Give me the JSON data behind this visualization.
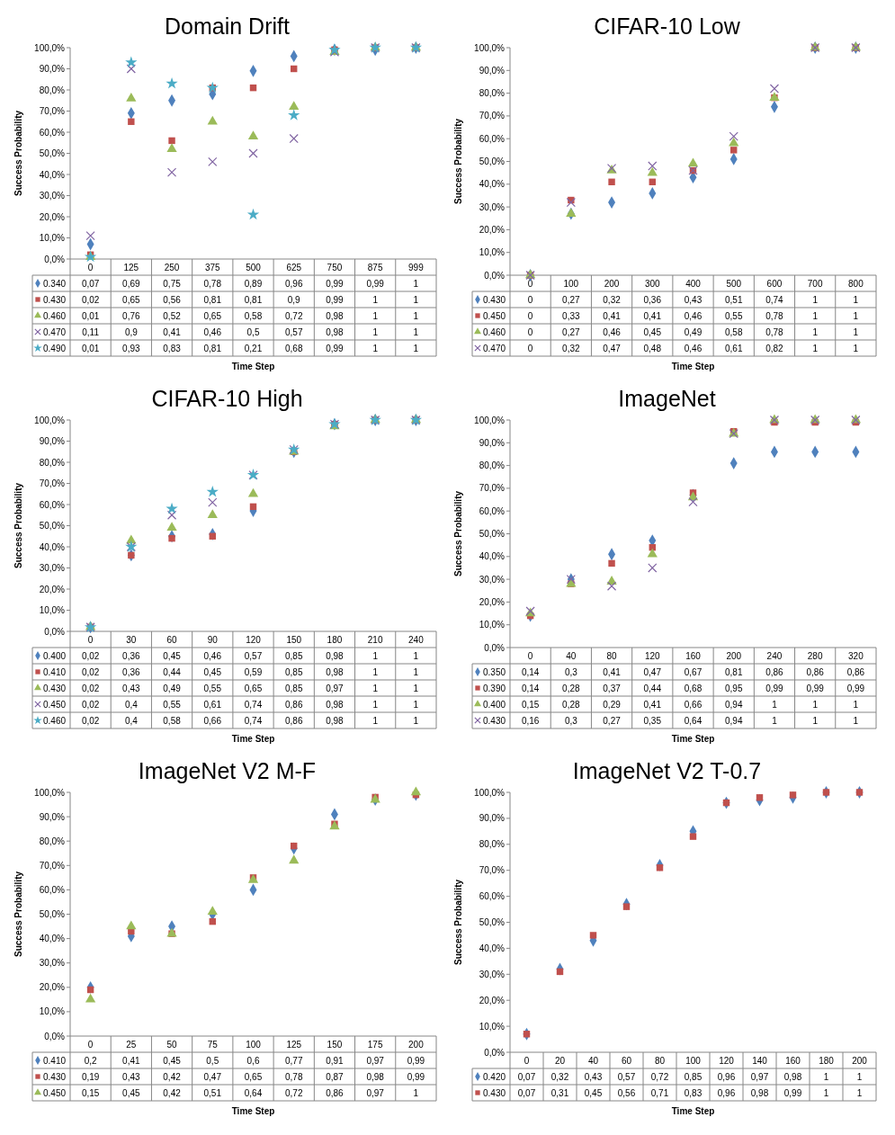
{
  "chart_data": [
    {
      "type": "scatter",
      "title": "Domain Drift",
      "xlabel": "Time Step",
      "ylabel": "Success Probability",
      "categories": [
        "0",
        "125",
        "250",
        "375",
        "500",
        "625",
        "750",
        "875",
        "999"
      ],
      "ylim": [
        0,
        1
      ],
      "yticks": [
        {
          "value": 0,
          "label": "0,0%"
        },
        {
          "value": 0.1,
          "label": "10,0%"
        },
        {
          "value": 0.2,
          "label": "20,0%"
        },
        {
          "value": 0.3,
          "label": "30,0%"
        },
        {
          "value": 0.4,
          "label": "40,0%"
        },
        {
          "value": 0.5,
          "label": "50,0%"
        },
        {
          "value": 0.6,
          "label": "60,0%"
        },
        {
          "value": 0.7,
          "label": "70,0%"
        },
        {
          "value": 0.8,
          "label": "80,0%"
        },
        {
          "value": 0.9,
          "label": "90,0%"
        },
        {
          "value": 1,
          "label": "100,0%"
        }
      ],
      "legend": "bottom",
      "series": [
        {
          "name": "0.340",
          "color": "#4f81bd",
          "marker": "diamond",
          "values": [
            0.07,
            0.69,
            0.75,
            0.78,
            0.89,
            0.96,
            0.99,
            0.99,
            1
          ],
          "value_labels": [
            "0,07",
            "0,69",
            "0,75",
            "0,78",
            "0,89",
            "0,96",
            "0,99",
            "0,99",
            "1"
          ]
        },
        {
          "name": "0.430",
          "color": "#c0504d",
          "marker": "square",
          "values": [
            0.02,
            0.65,
            0.56,
            0.81,
            0.81,
            0.9,
            0.99,
            1,
            1
          ],
          "value_labels": [
            "0,02",
            "0,65",
            "0,56",
            "0,81",
            "0,81",
            "0,9",
            "0,99",
            "1",
            "1"
          ]
        },
        {
          "name": "0.460",
          "color": "#9bbb59",
          "marker": "triangle",
          "values": [
            0.01,
            0.76,
            0.52,
            0.65,
            0.58,
            0.72,
            0.98,
            1,
            1
          ],
          "value_labels": [
            "0,01",
            "0,76",
            "0,52",
            "0,65",
            "0,58",
            "0,72",
            "0,98",
            "1",
            "1"
          ]
        },
        {
          "name": "0.470",
          "color": "#8064a2",
          "marker": "cross",
          "values": [
            0.11,
            0.9,
            0.41,
            0.46,
            0.5,
            0.57,
            0.98,
            1,
            1
          ],
          "value_labels": [
            "0,11",
            "0,9",
            "0,41",
            "0,46",
            "0,5",
            "0,57",
            "0,98",
            "1",
            "1"
          ]
        },
        {
          "name": "0.490",
          "color": "#4bacc6",
          "marker": "star",
          "values": [
            0.01,
            0.93,
            0.83,
            0.81,
            0.21,
            0.68,
            0.99,
            1,
            1
          ],
          "value_labels": [
            "0,01",
            "0,93",
            "0,83",
            "0,81",
            "0,21",
            "0,68",
            "0,99",
            "1",
            "1"
          ]
        }
      ]
    },
    {
      "type": "scatter",
      "title": "CIFAR-10 Low",
      "xlabel": "Time Step",
      "ylabel": "Success Probability",
      "categories": [
        "0",
        "100",
        "200",
        "300",
        "400",
        "500",
        "600",
        "700",
        "800"
      ],
      "ylim": [
        0,
        1
      ],
      "yticks": [
        {
          "value": 0,
          "label": "0,0%"
        },
        {
          "value": 0.1,
          "label": "10,0%"
        },
        {
          "value": 0.2,
          "label": "20,0%"
        },
        {
          "value": 0.3,
          "label": "30,0%"
        },
        {
          "value": 0.4,
          "label": "40,0%"
        },
        {
          "value": 0.5,
          "label": "50,0%"
        },
        {
          "value": 0.6,
          "label": "60,0%"
        },
        {
          "value": 0.7,
          "label": "70,0%"
        },
        {
          "value": 0.8,
          "label": "80,0%"
        },
        {
          "value": 0.9,
          "label": "90,0%"
        },
        {
          "value": 1,
          "label": "100,0%"
        }
      ],
      "legend": "bottom",
      "series": [
        {
          "name": "0.430",
          "color": "#4f81bd",
          "marker": "diamond",
          "values": [
            0,
            0.27,
            0.32,
            0.36,
            0.43,
            0.51,
            0.74,
            1,
            1
          ],
          "value_labels": [
            "0",
            "0,27",
            "0,32",
            "0,36",
            "0,43",
            "0,51",
            "0,74",
            "1",
            "1"
          ]
        },
        {
          "name": "0.450",
          "color": "#c0504d",
          "marker": "square",
          "values": [
            0,
            0.33,
            0.41,
            0.41,
            0.46,
            0.55,
            0.78,
            1,
            1
          ],
          "value_labels": [
            "0",
            "0,33",
            "0,41",
            "0,41",
            "0,46",
            "0,55",
            "0,78",
            "1",
            "1"
          ]
        },
        {
          "name": "0.460",
          "color": "#9bbb59",
          "marker": "triangle",
          "values": [
            0,
            0.27,
            0.46,
            0.45,
            0.49,
            0.58,
            0.78,
            1,
            1
          ],
          "value_labels": [
            "0",
            "0,27",
            "0,46",
            "0,45",
            "0,49",
            "0,58",
            "0,78",
            "1",
            "1"
          ]
        },
        {
          "name": "0.470",
          "color": "#8064a2",
          "marker": "cross",
          "values": [
            0,
            0.32,
            0.47,
            0.48,
            0.46,
            0.61,
            0.82,
            1,
            1
          ],
          "value_labels": [
            "0",
            "0,32",
            "0,47",
            "0,48",
            "0,46",
            "0,61",
            "0,82",
            "1",
            "1"
          ]
        }
      ]
    },
    {
      "type": "scatter",
      "title": "CIFAR-10 High",
      "xlabel": "Time Step",
      "ylabel": "Success Probability",
      "categories": [
        "0",
        "30",
        "60",
        "90",
        "120",
        "150",
        "180",
        "210",
        "240"
      ],
      "ylim": [
        0,
        1
      ],
      "yticks": [
        {
          "value": 0,
          "label": "0,0%"
        },
        {
          "value": 0.1,
          "label": "10,0%"
        },
        {
          "value": 0.2,
          "label": "20,0%"
        },
        {
          "value": 0.3,
          "label": "30,0%"
        },
        {
          "value": 0.4,
          "label": "40,0%"
        },
        {
          "value": 0.5,
          "label": "50,0%"
        },
        {
          "value": 0.6,
          "label": "60,0%"
        },
        {
          "value": 0.7,
          "label": "70,0%"
        },
        {
          "value": 0.8,
          "label": "80,0%"
        },
        {
          "value": 0.9,
          "label": "90,0%"
        },
        {
          "value": 1,
          "label": "100,0%"
        }
      ],
      "legend": "bottom",
      "series": [
        {
          "name": "0.400",
          "color": "#4f81bd",
          "marker": "diamond",
          "values": [
            0.02,
            0.36,
            0.45,
            0.46,
            0.57,
            0.85,
            0.98,
            1,
            1
          ],
          "value_labels": [
            "0,02",
            "0,36",
            "0,45",
            "0,46",
            "0,57",
            "0,85",
            "0,98",
            "1",
            "1"
          ]
        },
        {
          "name": "0.410",
          "color": "#c0504d",
          "marker": "square",
          "values": [
            0.02,
            0.36,
            0.44,
            0.45,
            0.59,
            0.85,
            0.98,
            1,
            1
          ],
          "value_labels": [
            "0,02",
            "0,36",
            "0,44",
            "0,45",
            "0,59",
            "0,85",
            "0,98",
            "1",
            "1"
          ]
        },
        {
          "name": "0.430",
          "color": "#9bbb59",
          "marker": "triangle",
          "values": [
            0.02,
            0.43,
            0.49,
            0.55,
            0.65,
            0.85,
            0.97,
            1,
            1
          ],
          "value_labels": [
            "0,02",
            "0,43",
            "0,49",
            "0,55",
            "0,65",
            "0,85",
            "0,97",
            "1",
            "1"
          ]
        },
        {
          "name": "0.450",
          "color": "#8064a2",
          "marker": "cross",
          "values": [
            0.02,
            0.4,
            0.55,
            0.61,
            0.74,
            0.86,
            0.98,
            1,
            1
          ],
          "value_labels": [
            "0,02",
            "0,4",
            "0,55",
            "0,61",
            "0,74",
            "0,86",
            "0,98",
            "1",
            "1"
          ]
        },
        {
          "name": "0.460",
          "color": "#4bacc6",
          "marker": "star",
          "values": [
            0.02,
            0.4,
            0.58,
            0.66,
            0.74,
            0.86,
            0.98,
            1,
            1
          ],
          "value_labels": [
            "0,02",
            "0,4",
            "0,58",
            "0,66",
            "0,74",
            "0,86",
            "0,98",
            "1",
            "1"
          ]
        }
      ]
    },
    {
      "type": "scatter",
      "title": "ImageNet",
      "xlabel": "Time Step",
      "ylabel": "Success Probability",
      "categories": [
        "0",
        "40",
        "80",
        "120",
        "160",
        "200",
        "240",
        "280",
        "320"
      ],
      "ylim": [
        0,
        1
      ],
      "yticks": [
        {
          "value": 0,
          "label": "0,0%"
        },
        {
          "value": 0.1,
          "label": "10,0%"
        },
        {
          "value": 0.2,
          "label": "20,0%"
        },
        {
          "value": 0.3,
          "label": "30,0%"
        },
        {
          "value": 0.4,
          "label": "40,0%"
        },
        {
          "value": 0.5,
          "label": "50,0%"
        },
        {
          "value": 0.6,
          "label": "60,0%"
        },
        {
          "value": 0.7,
          "label": "70,0%"
        },
        {
          "value": 0.8,
          "label": "80,0%"
        },
        {
          "value": 0.9,
          "label": "90,0%"
        },
        {
          "value": 1,
          "label": "100,0%"
        }
      ],
      "legend": "bottom",
      "series": [
        {
          "name": "0.350",
          "color": "#4f81bd",
          "marker": "diamond",
          "values": [
            0.14,
            0.3,
            0.41,
            0.47,
            0.67,
            0.81,
            0.86,
            0.86,
            0.86
          ],
          "value_labels": [
            "0,14",
            "0,3",
            "0,41",
            "0,47",
            "0,67",
            "0,81",
            "0,86",
            "0,86",
            "0,86"
          ]
        },
        {
          "name": "0.390",
          "color": "#c0504d",
          "marker": "square",
          "values": [
            0.14,
            0.28,
            0.37,
            0.44,
            0.68,
            0.95,
            0.99,
            0.99,
            0.99
          ],
          "value_labels": [
            "0,14",
            "0,28",
            "0,37",
            "0,44",
            "0,68",
            "0,95",
            "0,99",
            "0,99",
            "0,99"
          ]
        },
        {
          "name": "0.400",
          "color": "#9bbb59",
          "marker": "triangle",
          "values": [
            0.15,
            0.28,
            0.29,
            0.41,
            0.66,
            0.94,
            1,
            1,
            1
          ],
          "value_labels": [
            "0,15",
            "0,28",
            "0,29",
            "0,41",
            "0,66",
            "0,94",
            "1",
            "1",
            "1"
          ]
        },
        {
          "name": "0.430",
          "color": "#8064a2",
          "marker": "cross",
          "values": [
            0.16,
            0.3,
            0.27,
            0.35,
            0.64,
            0.94,
            1,
            1,
            1
          ],
          "value_labels": [
            "0,16",
            "0,3",
            "0,27",
            "0,35",
            "0,64",
            "0,94",
            "1",
            "1",
            "1"
          ]
        }
      ]
    },
    {
      "type": "scatter",
      "title": "ImageNet V2 M-F",
      "xlabel": "Time Step",
      "ylabel": "Success Probability",
      "categories": [
        "0",
        "25",
        "50",
        "75",
        "100",
        "125",
        "150",
        "175",
        "200"
      ],
      "ylim": [
        0,
        1
      ],
      "yticks": [
        {
          "value": 0,
          "label": "0,0%"
        },
        {
          "value": 0.1,
          "label": "10,0%"
        },
        {
          "value": 0.2,
          "label": "20,0%"
        },
        {
          "value": 0.3,
          "label": "30,0%"
        },
        {
          "value": 0.4,
          "label": "40,0%"
        },
        {
          "value": 0.5,
          "label": "50,0%"
        },
        {
          "value": 0.6,
          "label": "60,0%"
        },
        {
          "value": 0.7,
          "label": "70,0%"
        },
        {
          "value": 0.8,
          "label": "80,0%"
        },
        {
          "value": 0.9,
          "label": "90,0%"
        },
        {
          "value": 1,
          "label": "100,0%"
        }
      ],
      "legend": "bottom",
      "series": [
        {
          "name": "0.410",
          "color": "#4f81bd",
          "marker": "diamond",
          "values": [
            0.2,
            0.41,
            0.45,
            0.5,
            0.6,
            0.77,
            0.91,
            0.97,
            0.99
          ],
          "value_labels": [
            "0,2",
            "0,41",
            "0,45",
            "0,5",
            "0,6",
            "0,77",
            "0,91",
            "0,97",
            "0,99"
          ]
        },
        {
          "name": "0.430",
          "color": "#c0504d",
          "marker": "square",
          "values": [
            0.19,
            0.43,
            0.42,
            0.47,
            0.65,
            0.78,
            0.87,
            0.98,
            0.99
          ],
          "value_labels": [
            "0,19",
            "0,43",
            "0,42",
            "0,47",
            "0,65",
            "0,78",
            "0,87",
            "0,98",
            "0,99"
          ]
        },
        {
          "name": "0.450",
          "color": "#9bbb59",
          "marker": "triangle",
          "values": [
            0.15,
            0.45,
            0.42,
            0.51,
            0.64,
            0.72,
            0.86,
            0.97,
            1
          ],
          "value_labels": [
            "0,15",
            "0,45",
            "0,42",
            "0,51",
            "0,64",
            "0,72",
            "0,86",
            "0,97",
            "1"
          ]
        }
      ]
    },
    {
      "type": "scatter",
      "title": "ImageNet V2 T-0.7",
      "xlabel": "Time Step",
      "ylabel": "Success Probability",
      "categories": [
        "0",
        "20",
        "40",
        "60",
        "80",
        "100",
        "120",
        "140",
        "160",
        "180",
        "200"
      ],
      "ylim": [
        0,
        1
      ],
      "yticks": [
        {
          "value": 0,
          "label": "0,0%"
        },
        {
          "value": 0.1,
          "label": "10,0%"
        },
        {
          "value": 0.2,
          "label": "20,0%"
        },
        {
          "value": 0.3,
          "label": "30,0%"
        },
        {
          "value": 0.4,
          "label": "40,0%"
        },
        {
          "value": 0.5,
          "label": "50,0%"
        },
        {
          "value": 0.6,
          "label": "60,0%"
        },
        {
          "value": 0.7,
          "label": "70,0%"
        },
        {
          "value": 0.8,
          "label": "80,0%"
        },
        {
          "value": 0.9,
          "label": "90,0%"
        },
        {
          "value": 1,
          "label": "100,0%"
        }
      ],
      "legend": "bottom",
      "series": [
        {
          "name": "0.420",
          "color": "#4f81bd",
          "marker": "diamond",
          "values": [
            0.07,
            0.32,
            0.43,
            0.57,
            0.72,
            0.85,
            0.96,
            0.97,
            0.98,
            1,
            1
          ],
          "value_labels": [
            "0,07",
            "0,32",
            "0,43",
            "0,57",
            "0,72",
            "0,85",
            "0,96",
            "0,97",
            "0,98",
            "1",
            "1"
          ]
        },
        {
          "name": "0.430",
          "color": "#c0504d",
          "marker": "square",
          "values": [
            0.07,
            0.31,
            0.45,
            0.56,
            0.71,
            0.83,
            0.96,
            0.98,
            0.99,
            1,
            1
          ],
          "value_labels": [
            "0,07",
            "0,31",
            "0,45",
            "0,56",
            "0,71",
            "0,83",
            "0,96",
            "0,98",
            "0,99",
            "1",
            "1"
          ]
        }
      ]
    }
  ]
}
